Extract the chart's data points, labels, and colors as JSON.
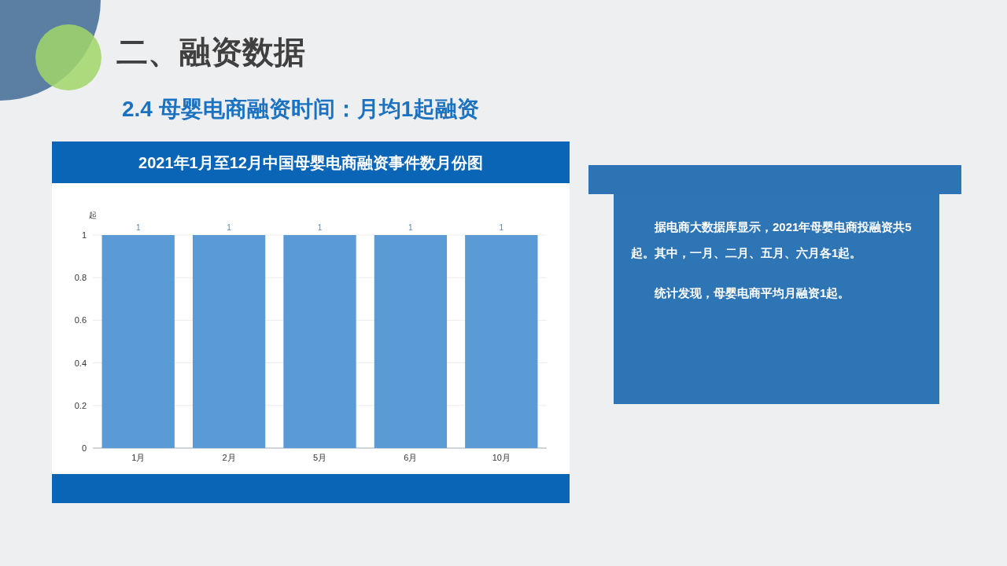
{
  "chart_data": [
    {
      "type": "bar",
      "title": "2021年1月至12月中国母婴电商融资事件数月份图",
      "ylabel": "起",
      "categories": [
        "1月",
        "2月",
        "5月",
        "6月",
        "10月"
      ],
      "values": [
        1,
        1,
        1,
        1,
        1
      ],
      "color": "#5b9bd5",
      "ylim": [
        0,
        1
      ],
      "yticks": [
        0,
        0.2,
        0.4,
        0.6,
        0.8,
        1
      ],
      "grid": "y",
      "data_labels": true,
      "annotations": [
        "二、融资数据",
        "2.4 母婴电商融资时间：月均1起融资"
      ]
    },
    {
      "type": "other",
      "annotations": [
        "据电商大数据库显示，2021年母婴电商投融资共5起。其中，一月、二月、五月、六月各1起。",
        "统计发现，母婴电商平均月融资1起。"
      ]
    }
  ]
}
